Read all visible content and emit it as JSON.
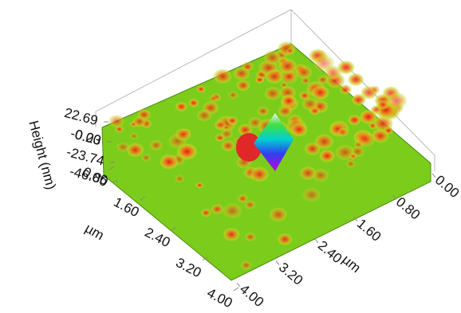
{
  "chart_data": {
    "type": "surface",
    "zlabel": "Height (nm)",
    "zlim": [
      -46.06,
      22.69
    ],
    "zticks": [
      22.69,
      -0.23,
      {
        "value": 0,
        "label": "0.00"
      },
      -23.74,
      -46.06
    ],
    "ylabel": "µm",
    "ylim": [
      0,
      4
    ],
    "yticks": [
      {
        "value": 0.8,
        "label": "0.80"
      },
      {
        "value": 1.6,
        "label": "1.60"
      },
      {
        "value": 2.4,
        "label": "2.40"
      },
      {
        "value": 3.2,
        "label": "3.20"
      },
      {
        "value": 4,
        "label": "4.00"
      }
    ],
    "xlabel": "µm",
    "xlim": [
      0,
      4
    ],
    "xticks": [
      {
        "value": 0,
        "label": "0.00"
      },
      {
        "value": 0.8,
        "label": "0.80"
      },
      {
        "value": 1.6,
        "label": "1.60"
      },
      {
        "value": 2.4,
        "label": "2.40"
      },
      {
        "value": 3.2,
        "label": "3.20"
      },
      {
        "value": 4,
        "label": "4.00"
      }
    ]
  }
}
